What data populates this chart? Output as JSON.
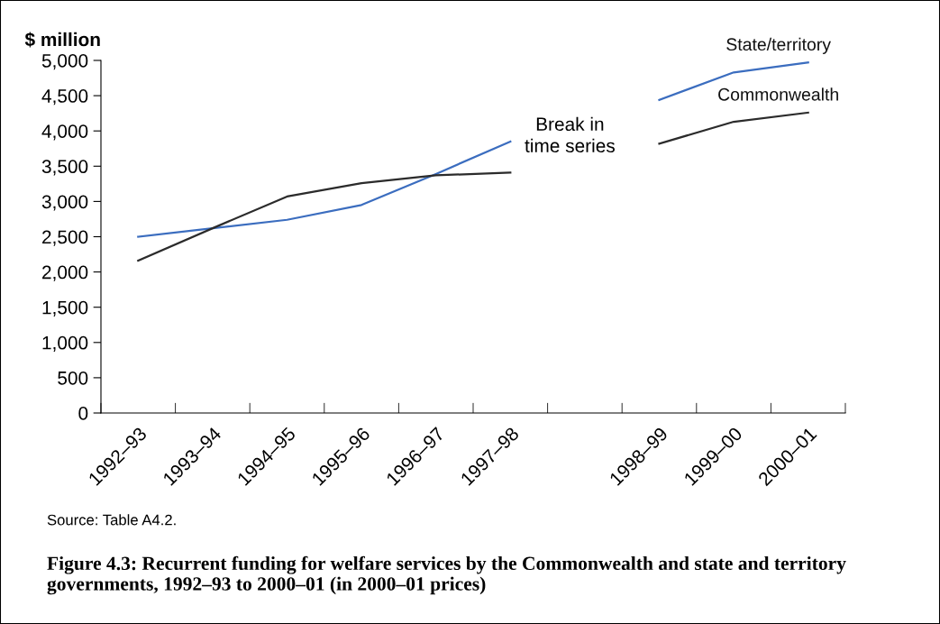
{
  "chart_data": {
    "type": "line",
    "title": "Figure 4.3: Recurrent funding for welfare services by the Commonwealth and state and territory governments, 1992–93 to 2000–01 (in 2000–01 prices)",
    "ylabel": "$ million",
    "categories": [
      "1992–93",
      "1993–94",
      "1994–95",
      "1995–96",
      "1996–97",
      "1997–98",
      null,
      "1998–99",
      "1999–00",
      "2000–01"
    ],
    "series": [
      {
        "name": "State/territory",
        "color": "#3b6dbf",
        "values": [
          2500,
          2620,
          2740,
          2950,
          3390,
          3850,
          null,
          4440,
          4830,
          4970
        ]
      },
      {
        "name": "Commonwealth",
        "color": "#2b2b2b",
        "values": [
          2160,
          2620,
          3070,
          3260,
          3370,
          3410,
          null,
          3820,
          4130,
          4260
        ]
      }
    ],
    "ylim": [
      0,
      5000
    ],
    "yticks": [
      0,
      500,
      {
        "value": 1000,
        "label": "1,000"
      },
      {
        "value": 1500,
        "label": "1,500"
      },
      {
        "value": 2000,
        "label": "2,000"
      },
      {
        "value": 2500,
        "label": "2,500"
      },
      {
        "value": 3000,
        "label": "3,000"
      },
      {
        "value": 3500,
        "label": "3,500"
      },
      {
        "value": 4000,
        "label": "4,000"
      },
      {
        "value": 4500,
        "label": "4,500"
      },
      {
        "value": 5000,
        "label": "5,000"
      }
    ],
    "annotations": [
      "Break in time series",
      "Source: Table A4.2."
    ],
    "grid": false,
    "legend": false,
    "marker": "none",
    "line_style": "solid"
  }
}
